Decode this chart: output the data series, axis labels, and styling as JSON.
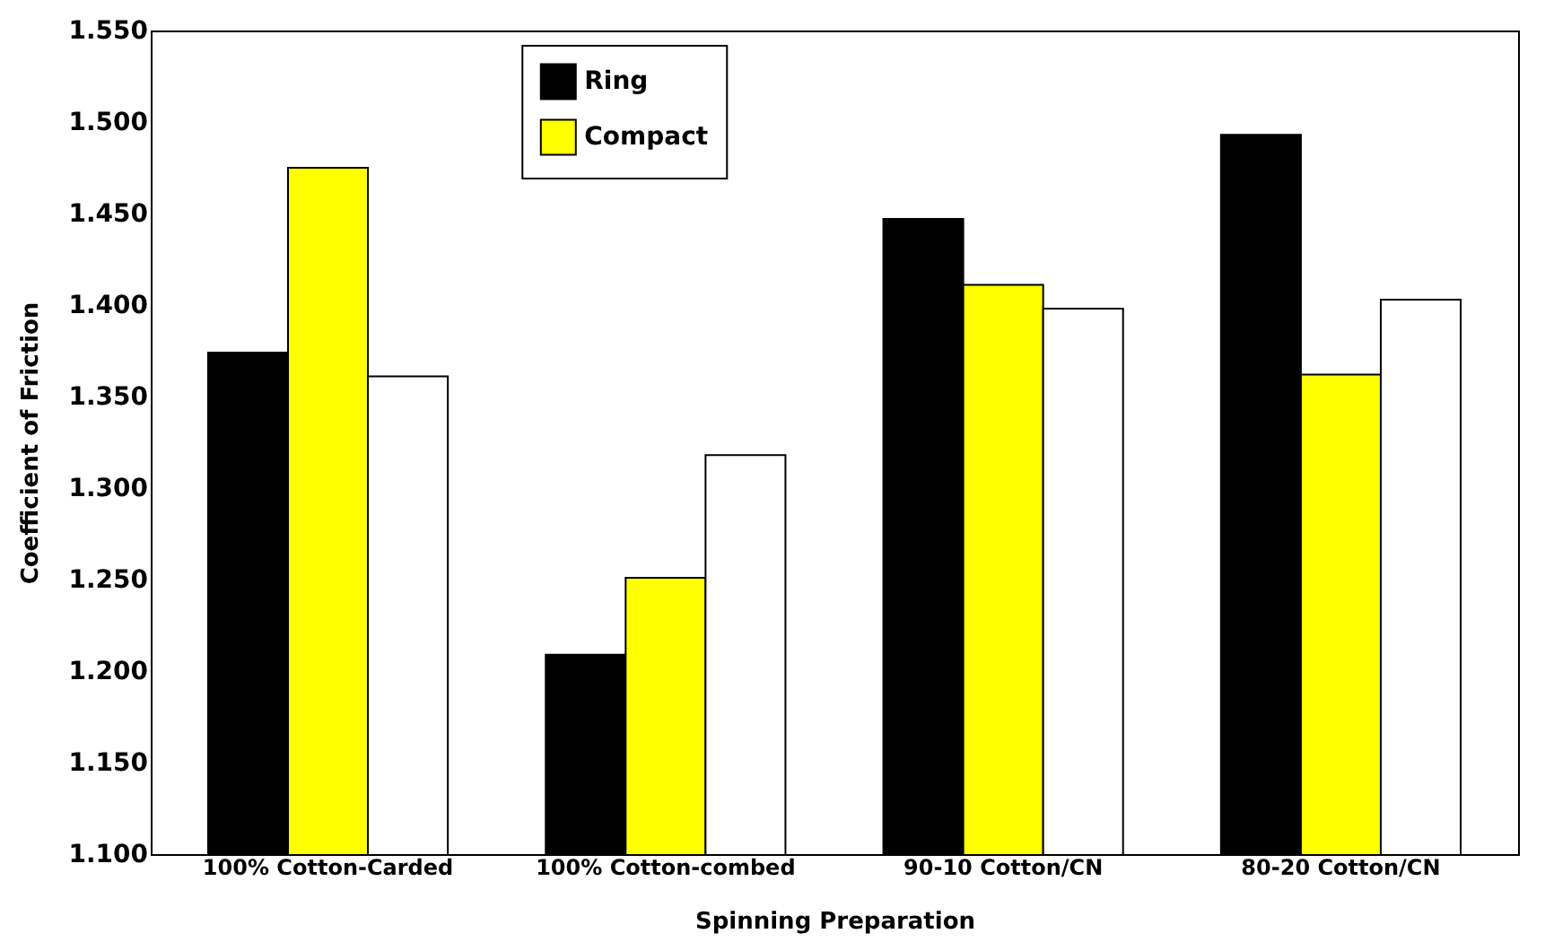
{
  "chart_data": {
    "type": "bar",
    "xlabel": "Spinning Preparation",
    "ylabel": "Coefficient of Friction",
    "categories": [
      "100% Cotton-Carded",
      "100% Cotton-combed",
      "90-10 Cotton/CN",
      "80-20 Cotton/CN"
    ],
    "series": [
      {
        "name": "Ring",
        "color": "#000000",
        "values": [
          1.374,
          1.209,
          1.447,
          1.493
        ]
      },
      {
        "name": "Compact",
        "color": "#ffff00",
        "values": [
          1.475,
          1.251,
          1.411,
          1.362
        ]
      },
      {
        "color": "#ffffff",
        "values": [
          1.361,
          1.318,
          1.398,
          1.403
        ]
      }
    ],
    "ylim": [
      1.1,
      1.55
    ],
    "yticks": [
      {
        "value": 1.1,
        "label": "1.100"
      },
      {
        "value": 1.15,
        "label": "1.150"
      },
      {
        "value": 1.2,
        "label": "1.200"
      },
      {
        "value": 1.25,
        "label": "1.250"
      },
      {
        "value": 1.3,
        "label": "1.300"
      },
      {
        "value": 1.35,
        "label": "1.350"
      },
      {
        "value": 1.4,
        "label": "1.400"
      },
      {
        "value": 1.45,
        "label": "1.450"
      },
      {
        "value": 1.5,
        "label": "1.500"
      },
      {
        "value": 1.55,
        "label": "1.550"
      }
    ],
    "grid": false,
    "legend": "top"
  }
}
